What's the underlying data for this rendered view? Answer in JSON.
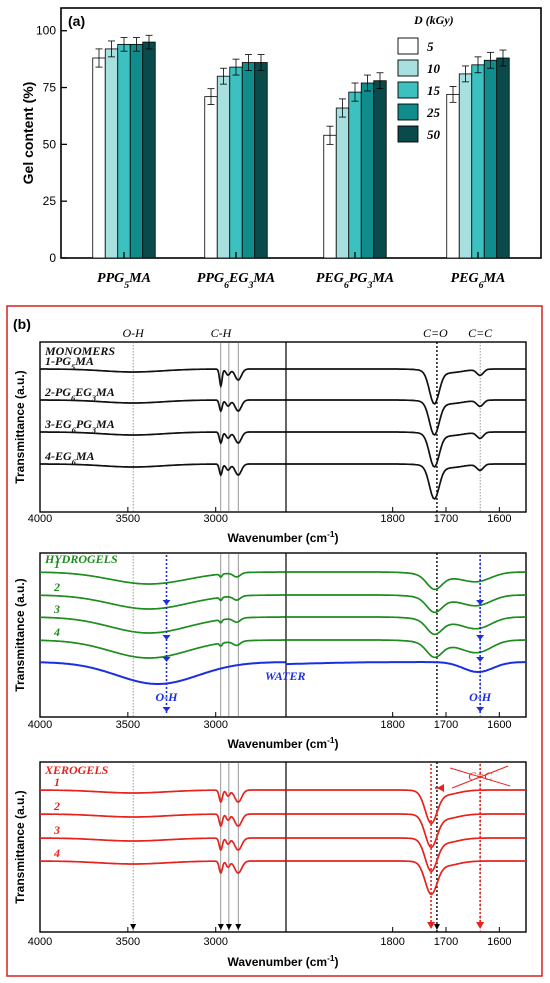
{
  "colors": {
    "monomers": "#111111",
    "hydrogels": "#1e8c1e",
    "water": "#1c2fe0",
    "xerogels": "#e8231e",
    "frame_b": "#d9302c",
    "dose_fills": [
      "#ffffff",
      "#a8e0e0",
      "#3cc0c0",
      "#108c8c",
      "#0a4a4a"
    ]
  },
  "panel_a": {
    "label": "(a)",
    "chart_data": {
      "type": "bar",
      "categories": [
        "PPG5MA",
        "PPG6EG3MA",
        "PEG6PG3MA",
        "PEG6MA"
      ],
      "category_parts": [
        [
          {
            "t": "PPG"
          },
          {
            "t": "5",
            "sub": true
          },
          {
            "t": "MA"
          }
        ],
        [
          {
            "t": "PPG"
          },
          {
            "t": "6",
            "sub": true
          },
          {
            "t": "EG"
          },
          {
            "t": "3",
            "sub": true
          },
          {
            "t": "MA"
          }
        ],
        [
          {
            "t": "PEG"
          },
          {
            "t": "6",
            "sub": true
          },
          {
            "t": "PG"
          },
          {
            "t": "3",
            "sub": true
          },
          {
            "t": "MA"
          }
        ],
        [
          {
            "t": "PEG"
          },
          {
            "t": "6",
            "sub": true
          },
          {
            "t": "MA"
          }
        ]
      ],
      "series": [
        {
          "name": "5",
          "values": [
            88,
            71,
            54,
            72
          ],
          "errors": [
            4,
            3.5,
            4,
            3.5
          ]
        },
        {
          "name": "10",
          "values": [
            92,
            80,
            66,
            81
          ],
          "errors": [
            3.5,
            3.5,
            4,
            3.5
          ]
        },
        {
          "name": "15",
          "values": [
            94,
            84,
            73,
            85
          ],
          "errors": [
            3,
            3.5,
            4,
            3.5
          ]
        },
        {
          "name": "25",
          "values": [
            94,
            86,
            77,
            87
          ],
          "errors": [
            3,
            3.5,
            3.5,
            3.5
          ]
        },
        {
          "name": "50",
          "values": [
            95,
            86,
            78,
            88
          ],
          "errors": [
            3,
            3.5,
            3.5,
            3.5
          ]
        }
      ],
      "ylabel": "Gel content  (%)",
      "ylim": [
        0,
        110
      ],
      "yticks": [
        "0",
        "25",
        "50",
        "75",
        "100"
      ],
      "legend_title": "D (kGy)",
      "legend_placement": "top-right"
    }
  },
  "panel_b": {
    "label": "(b)",
    "ylabel": "Transmittance (a.u.)",
    "xlabel": "Wavenumber (cm",
    "xlabel_exp": "-1",
    "xlabel_end": ")",
    "chart_data": {
      "type": "line",
      "x_axis": "reversed, broken",
      "x_left_range": [
        4000,
        2600
      ],
      "x_right_range": [
        2000,
        1550
      ],
      "x_ticks_left": [
        "4000",
        "3500",
        "3000"
      ],
      "x_ticks_right": [
        "1800",
        "1700",
        "1600"
      ],
      "band_markers": [
        {
          "label": "O-H",
          "x": 3470
        },
        {
          "label": "C-H",
          "x": 2970
        },
        {
          "label": "C=O",
          "x": 1720
        },
        {
          "label": "C=C",
          "x": 1636
        }
      ],
      "subpanels": [
        {
          "title": "MONOMERS",
          "series": [
            {
              "name": "1-PG5MA",
              "label_parts": [
                {
                  "t": "1-PG"
                },
                {
                  "t": "5",
                  "sub": true
                },
                {
                  "t": "MA"
                }
              ]
            },
            {
              "name": "2-PG6EG3MA",
              "label_parts": [
                {
                  "t": "2-PG"
                },
                {
                  "t": "6",
                  "sub": true
                },
                {
                  "t": "EG"
                },
                {
                  "t": "3",
                  "sub": true
                },
                {
                  "t": "MA"
                }
              ]
            },
            {
              "name": "3-EG6PG3MA",
              "label_parts": [
                {
                  "t": "3-EG"
                },
                {
                  "t": "6",
                  "sub": true
                },
                {
                  "t": "PG"
                },
                {
                  "t": "3",
                  "sub": true
                },
                {
                  "t": "MA"
                }
              ]
            },
            {
              "name": "4-EG6MA",
              "label_parts": [
                {
                  "t": "4-EG"
                },
                {
                  "t": "6",
                  "sub": true
                },
                {
                  "t": "MA"
                }
              ]
            }
          ]
        },
        {
          "title": "HYDROGELS",
          "series": [
            {
              "name": "1"
            },
            {
              "name": "2"
            },
            {
              "name": "3"
            },
            {
              "name": "4"
            }
          ],
          "water_label": "WATER",
          "annotations": [
            "O-H",
            "O-H"
          ]
        },
        {
          "title": "XEROGELS",
          "series": [
            {
              "name": "1"
            },
            {
              "name": "2"
            },
            {
              "name": "3"
            },
            {
              "name": "4"
            }
          ],
          "annotation": "C=C"
        }
      ]
    }
  }
}
